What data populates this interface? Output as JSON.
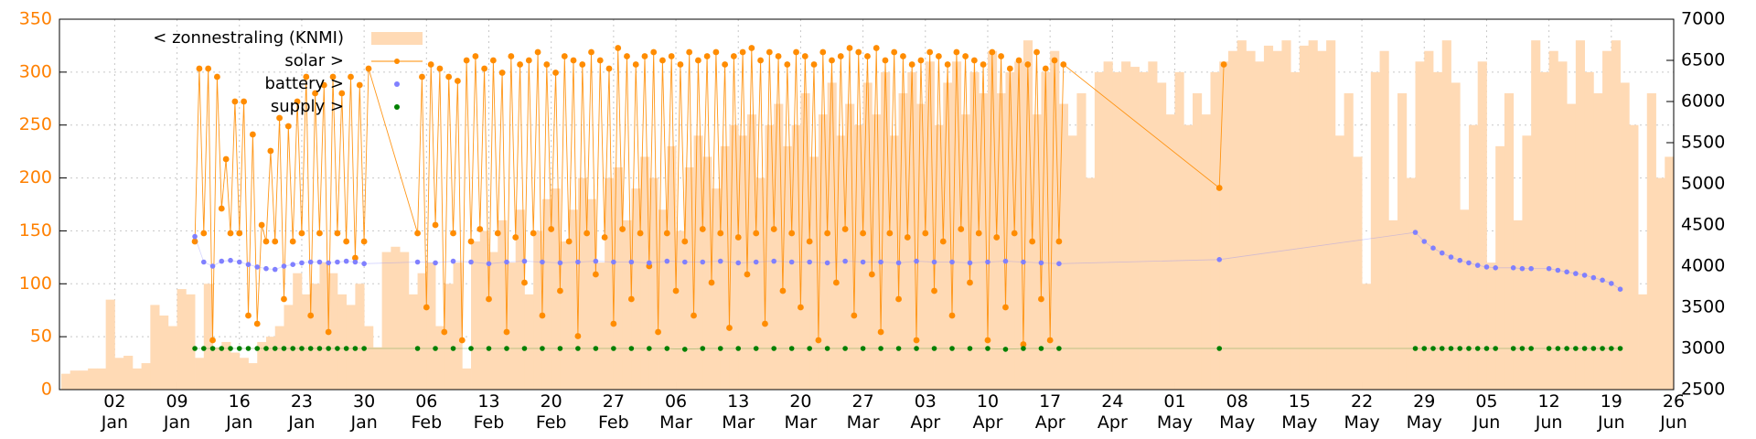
{
  "chart_data": {
    "type": "line",
    "legend": "top left",
    "grid": true,
    "ycolor": "#ff8000",
    "y2color": "#000000",
    "xlim": [
      -4.2,
      177
    ],
    "ylim": [
      0,
      350
    ],
    "y2lim": [
      2500,
      7000
    ],
    "yticks": [
      0,
      50,
      100,
      150,
      200,
      250,
      300,
      350
    ],
    "y2ticks": [
      2500,
      3000,
      3500,
      4000,
      4500,
      5000,
      5500,
      6000,
      6500,
      7000
    ],
    "xticks": [
      {
        "value": 2,
        "label": "02\nJan"
      },
      {
        "value": 9,
        "label": "09\nJan"
      },
      {
        "value": 16,
        "label": "16\nJan"
      },
      {
        "value": 23,
        "label": "23\nJan"
      },
      {
        "value": 30,
        "label": "30\nJan"
      },
      {
        "value": 37,
        "label": "06\nFeb"
      },
      {
        "value": 44,
        "label": "13\nFeb"
      },
      {
        "value": 51,
        "label": "20\nFeb"
      },
      {
        "value": 58,
        "label": "27\nFeb"
      },
      {
        "value": 65,
        "label": "06\nMar"
      },
      {
        "value": 72,
        "label": "13\nMar"
      },
      {
        "value": 79,
        "label": "20\nMar"
      },
      {
        "value": 86,
        "label": "27\nMar"
      },
      {
        "value": 93,
        "label": "03\nApr"
      },
      {
        "value": 100,
        "label": "10\nApr"
      },
      {
        "value": 107,
        "label": "17\nApr"
      },
      {
        "value": 114,
        "label": "24\nApr"
      },
      {
        "value": 121,
        "label": "01\nMay"
      },
      {
        "value": 128,
        "label": "08\nMay"
      },
      {
        "value": 135,
        "label": "15\nMay"
      },
      {
        "value": 142,
        "label": "22\nMay"
      },
      {
        "value": 149,
        "label": "29\nMay"
      },
      {
        "value": 156,
        "label": "05\nJun"
      },
      {
        "value": 163,
        "label": "12\nJun"
      },
      {
        "value": 170,
        "label": "19\nJun"
      },
      {
        "value": 177,
        "label": "26\nJun"
      }
    ],
    "series": [
      {
        "name": "< zonnestraling (KNMI)",
        "color": "#ffdab5",
        "style": "steps",
        "axis": "y",
        "x": [
          -4,
          -3,
          -2,
          -1,
          0,
          1,
          2,
          3,
          4,
          5,
          6,
          7,
          8,
          9,
          10,
          11,
          12,
          13,
          14,
          15,
          16,
          17,
          18,
          19,
          20,
          21,
          22,
          23,
          24,
          25,
          26,
          27,
          28,
          29,
          30,
          31,
          32,
          33,
          34,
          35,
          36,
          37,
          38,
          39,
          40,
          41,
          42,
          43,
          44,
          45,
          46,
          47,
          48,
          49,
          50,
          51,
          52,
          53,
          54,
          55,
          56,
          57,
          58,
          59,
          60,
          61,
          62,
          63,
          64,
          65,
          66,
          67,
          68,
          69,
          70,
          71,
          72,
          73,
          74,
          75,
          76,
          77,
          78,
          79,
          80,
          81,
          82,
          83,
          84,
          85,
          86,
          87,
          88,
          89,
          90,
          91,
          92,
          93,
          94,
          95,
          96,
          97,
          98,
          99,
          100,
          101,
          102,
          103,
          104,
          105,
          106,
          107,
          108,
          109,
          110,
          111,
          112,
          113,
          114,
          115,
          116,
          117,
          118,
          119,
          120,
          121,
          122,
          123,
          124,
          125,
          126,
          127,
          128,
          129,
          130,
          131,
          132,
          133,
          134,
          135,
          136,
          137,
          138,
          139,
          140,
          141,
          142,
          143,
          144,
          145,
          146,
          147,
          148,
          149,
          150,
          151,
          152,
          153,
          154,
          155,
          156,
          157,
          158,
          159,
          160,
          161,
          162,
          163,
          164,
          165,
          166,
          167,
          168,
          169,
          170,
          171,
          172,
          173,
          174,
          175,
          176
        ],
        "values": [
          15,
          18,
          18,
          20,
          20,
          85,
          30,
          32,
          20,
          25,
          80,
          70,
          60,
          95,
          90,
          30,
          100,
          40,
          45,
          35,
          30,
          25,
          45,
          50,
          60,
          80,
          110,
          90,
          100,
          120,
          110,
          90,
          80,
          100,
          60,
          40,
          130,
          135,
          130,
          90,
          110,
          120,
          60,
          100,
          120,
          20,
          140,
          150,
          130,
          160,
          120,
          170,
          90,
          150,
          180,
          190,
          140,
          170,
          200,
          180,
          120,
          200,
          210,
          160,
          190,
          220,
          200,
          170,
          230,
          150,
          210,
          240,
          220,
          190,
          230,
          250,
          240,
          260,
          200,
          250,
          270,
          230,
          250,
          280,
          220,
          260,
          290,
          240,
          270,
          250,
          290,
          260,
          300,
          240,
          280,
          300,
          270,
          310,
          250,
          290,
          310,
          260,
          300,
          280,
          320,
          280,
          300,
          310,
          330,
          260,
          300,
          320,
          270,
          240,
          280,
          200,
          300,
          310,
          300,
          310,
          305,
          300,
          310,
          290,
          260,
          300,
          250,
          280,
          260,
          300,
          310,
          320,
          330,
          320,
          310,
          325,
          320,
          330,
          300,
          325,
          330,
          320,
          330,
          240,
          280,
          220,
          100,
          300,
          320,
          160,
          280,
          200,
          310,
          320,
          300,
          330,
          290,
          170,
          250,
          310,
          120,
          230,
          280,
          160,
          240,
          330,
          300,
          320,
          310,
          270,
          330,
          300,
          280,
          320,
          330,
          290,
          250,
          90,
          280,
          200,
          220
        ]
      },
      {
        "name": "solar >",
        "color": "#ff8c00",
        "style": "linespoints",
        "axis": "y2",
        "x": [
          11,
          11.5,
          12,
          12.5,
          13,
          13.5,
          14,
          14.5,
          15,
          15.5,
          16,
          16.5,
          17,
          17.5,
          18,
          18.5,
          19,
          19.5,
          20,
          20.5,
          21,
          21.5,
          22,
          22.5,
          23,
          23.5,
          24,
          24.5,
          25,
          25.5,
          26,
          26.5,
          27,
          27.5,
          28,
          28.5,
          29,
          29.5,
          30,
          30.5,
          36,
          36.5,
          37,
          37.5,
          38,
          38.5,
          39,
          39.5,
          40,
          40.5,
          41,
          41.5,
          42,
          42.5,
          43,
          43.5,
          44,
          44.5,
          45,
          45.5,
          46,
          46.5,
          47,
          47.5,
          48,
          48.5,
          49,
          49.5,
          50,
          50.5,
          51,
          51.5,
          52,
          52.5,
          53,
          53.5,
          54,
          54.5,
          55,
          55.5,
          56,
          56.5,
          57,
          57.5,
          58,
          58.5,
          59,
          59.5,
          60,
          60.5,
          61,
          61.5,
          62,
          62.5,
          63,
          63.5,
          64,
          64.5,
          65,
          65.5,
          66,
          66.5,
          67,
          67.5,
          68,
          68.5,
          69,
          69.5,
          70,
          70.5,
          71,
          71.5,
          72,
          72.5,
          73,
          73.5,
          74,
          74.5,
          75,
          75.5,
          76,
          76.5,
          77,
          77.5,
          78,
          78.5,
          79,
          79.5,
          80,
          80.5,
          81,
          81.5,
          82,
          82.5,
          83,
          83.5,
          84,
          84.5,
          85,
          85.5,
          86,
          86.5,
          87,
          87.5,
          88,
          88.5,
          89,
          89.5,
          90,
          90.5,
          91,
          91.5,
          92,
          92.5,
          93,
          93.5,
          94,
          94.5,
          95,
          95.5,
          96,
          96.5,
          97,
          97.5,
          98,
          98.5,
          99,
          99.5,
          100,
          100.5,
          101,
          101.5,
          102,
          102.5,
          103,
          103.5,
          104,
          104.5,
          105,
          105.5,
          106,
          106.5,
          107,
          107.5,
          108,
          108.5,
          126,
          126.5
        ],
        "values": [
          4300,
          6400,
          4400,
          6400,
          3100,
          6300,
          4700,
          5300,
          4400,
          6000,
          4400,
          6000,
          3400,
          5600,
          3300,
          4500,
          4300,
          5400,
          4300,
          5800,
          3600,
          5700,
          4300,
          6000,
          4400,
          6300,
          3400,
          6100,
          4400,
          6200,
          3200,
          6300,
          4400,
          6100,
          4300,
          6300,
          4100,
          6200,
          4300,
          6400,
          4400,
          6300,
          3500,
          6450,
          4500,
          6400,
          3200,
          6300,
          4400,
          6250,
          3100,
          6500,
          4300,
          6550,
          4450,
          6400,
          3600,
          6500,
          4400,
          6350,
          3200,
          6550,
          4350,
          6450,
          3800,
          6500,
          4400,
          6600,
          3400,
          6450,
          4450,
          6350,
          3700,
          6550,
          4300,
          6500,
          3150,
          6450,
          4400,
          6600,
          3900,
          6500,
          4350,
          6400,
          3300,
          6650,
          4450,
          6550,
          3600,
          6450,
          4400,
          6550,
          4000,
          6600,
          3200,
          6500,
          4400,
          6550,
          3700,
          6450,
          4300,
          6600,
          3400,
          6500,
          4450,
          6550,
          3800,
          6600,
          4400,
          6450,
          3250,
          6550,
          4350,
          6600,
          3900,
          6650,
          4400,
          6500,
          3300,
          6600,
          4450,
          6550,
          3700,
          6450,
          4400,
          6600,
          3500,
          6550,
          4300,
          6450,
          3100,
          6600,
          4400,
          6500,
          3800,
          6550,
          4450,
          6650,
          3400,
          6600,
          4400,
          6550,
          3900,
          6650,
          3200,
          6500,
          4400,
          6600,
          3600,
          6550,
          4350,
          6450,
          3100,
          6500,
          4400,
          6600,
          3700,
          6550,
          4300,
          6450,
          3400,
          6600,
          4450,
          6550,
          3800,
          6500,
          4400,
          6450,
          3100,
          6600,
          4350,
          6550,
          3500,
          6400,
          4400,
          6500,
          3050,
          6450,
          4300,
          6600,
          3600,
          6400,
          3100,
          6500,
          4300,
          6450,
          4950,
          6450
        ]
      },
      {
        "name": "battery >",
        "color": "#8080ff",
        "style": "points",
        "axis": "y2",
        "x": [
          11,
          12,
          13,
          14,
          15,
          16,
          17,
          18,
          19,
          20,
          21,
          22,
          23,
          24,
          25,
          26,
          27,
          28,
          29,
          30,
          36,
          38,
          40,
          42,
          44,
          46,
          48,
          50,
          52,
          54,
          56,
          58,
          60,
          62,
          64,
          66,
          68,
          70,
          72,
          74,
          76,
          78,
          80,
          82,
          84,
          86,
          88,
          90,
          92,
          94,
          96,
          98,
          100,
          102,
          104,
          106,
          108,
          126,
          148,
          149,
          150,
          151,
          152,
          153,
          154,
          155,
          156,
          157,
          159,
          160,
          161,
          163,
          164,
          165,
          166,
          167,
          168,
          169,
          170,
          171
        ],
        "values": [
          4360,
          4050,
          4000,
          4060,
          4070,
          4050,
          4020,
          3990,
          3970,
          3960,
          4000,
          4020,
          4040,
          4050,
          4050,
          4040,
          4050,
          4060,
          4050,
          4030,
          4050,
          4040,
          4060,
          4050,
          4030,
          4050,
          4060,
          4050,
          4040,
          4050,
          4060,
          4050,
          4050,
          4040,
          4060,
          4050,
          4050,
          4060,
          4040,
          4050,
          4060,
          4050,
          4050,
          4040,
          4060,
          4050,
          4050,
          4040,
          4060,
          4050,
          4050,
          4040,
          4050,
          4060,
          4050,
          4040,
          4030,
          4080,
          4410,
          4300,
          4220,
          4160,
          4110,
          4070,
          4040,
          4010,
          3990,
          3980,
          3980,
          3970,
          3970,
          3970,
          3950,
          3930,
          3910,
          3890,
          3860,
          3830,
          3790,
          3720
        ]
      },
      {
        "name": "supply >",
        "color": "#008000",
        "style": "points",
        "axis": "y2",
        "x": [
          11,
          12,
          13,
          14,
          15,
          16,
          17,
          18,
          19,
          20,
          21,
          22,
          23,
          24,
          25,
          26,
          27,
          28,
          29,
          30,
          36,
          38,
          40,
          42,
          44,
          46,
          48,
          50,
          52,
          54,
          56,
          58,
          60,
          62,
          64,
          66,
          68,
          70,
          72,
          74,
          76,
          78,
          80,
          82,
          84,
          86,
          88,
          90,
          92,
          94,
          96,
          98,
          100,
          102,
          104,
          106,
          108,
          126,
          148,
          149,
          150,
          151,
          152,
          153,
          154,
          155,
          156,
          157,
          159,
          160,
          161,
          163,
          164,
          165,
          166,
          167,
          168,
          169,
          170,
          171
        ],
        "values": [
          3000,
          3000,
          3000,
          3000,
          3000,
          3000,
          3000,
          3000,
          3000,
          3000,
          3000,
          3000,
          3000,
          3000,
          3000,
          3000,
          3000,
          3000,
          3000,
          3000,
          3000,
          3000,
          3000,
          3000,
          3000,
          3000,
          3000,
          3000,
          3000,
          3000,
          3000,
          3000,
          3000,
          3000,
          3000,
          2990,
          3000,
          3000,
          3000,
          3000,
          3000,
          3000,
          3000,
          3000,
          3000,
          3000,
          3000,
          3000,
          3000,
          3000,
          3000,
          3000,
          3000,
          2990,
          3000,
          3000,
          3000,
          3000,
          3000,
          3000,
          3000,
          3000,
          3000,
          3000,
          3000,
          3000,
          3000,
          3000,
          3000,
          3000,
          3000,
          3000,
          3000,
          3000,
          3000,
          3000,
          3000,
          3000,
          3000,
          3000
        ]
      }
    ]
  }
}
